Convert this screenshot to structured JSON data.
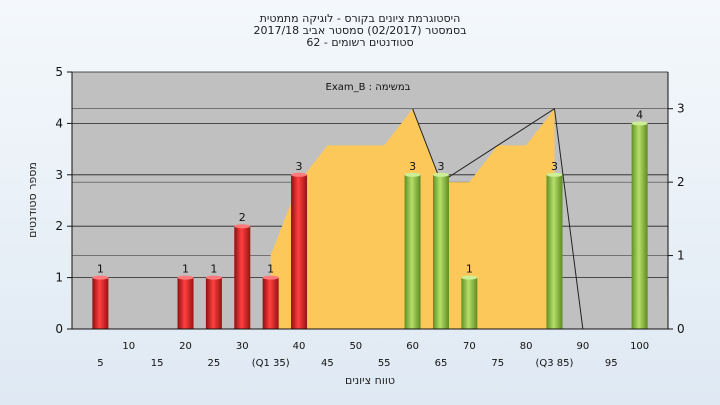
{
  "chart_data": {
    "type": "bar",
    "title_lines": [
      "היסטוגרמת ציונים בקורס - לוגיקה מתמטית",
      "בסמסטר  (02/2017)  סמסטר אביב 2017/18",
      "סטודנטים רשומים - 62"
    ],
    "annotation": "Exam_B : במשימה",
    "xlabel": "טווח ציונים",
    "ylabel": "מספר סטודנטים",
    "left_ylim": [
      0,
      5
    ],
    "left_yticks": [
      0,
      1,
      2,
      3,
      4,
      5
    ],
    "right_ylim": [
      0,
      3.5
    ],
    "right_yticks": [
      0,
      1,
      2,
      3
    ],
    "xlim": [
      0,
      105
    ],
    "x_tick_labels_upper": [
      {
        "x": 10,
        "label": "10"
      },
      {
        "x": 20,
        "label": "20"
      },
      {
        "x": 30,
        "label": "30"
      },
      {
        "x": 40,
        "label": "40"
      },
      {
        "x": 50,
        "label": "50"
      },
      {
        "x": 60,
        "label": "60"
      },
      {
        "x": 70,
        "label": "70"
      },
      {
        "x": 80,
        "label": "80"
      },
      {
        "x": 90,
        "label": "90"
      },
      {
        "x": 100,
        "label": "100"
      }
    ],
    "x_tick_labels_lower": [
      {
        "x": 5,
        "label": "5"
      },
      {
        "x": 15,
        "label": "15"
      },
      {
        "x": 25,
        "label": "25"
      },
      {
        "x": 35,
        "label": "(Q1 35)"
      },
      {
        "x": 45,
        "label": "45"
      },
      {
        "x": 55,
        "label": "55"
      },
      {
        "x": 65,
        "label": "65"
      },
      {
        "x": 75,
        "label": "75"
      },
      {
        "x": 85,
        "label": "(Q3 85)"
      },
      {
        "x": 95,
        "label": "95"
      }
    ],
    "bars": [
      {
        "x": 5,
        "value": 1,
        "color": "red"
      },
      {
        "x": 20,
        "value": 1,
        "color": "red"
      },
      {
        "x": 25,
        "value": 1,
        "color": "red"
      },
      {
        "x": 30,
        "value": 2,
        "color": "red"
      },
      {
        "x": 35,
        "value": 1,
        "color": "red"
      },
      {
        "x": 40,
        "value": 3,
        "color": "red"
      },
      {
        "x": 60,
        "value": 3,
        "color": "green"
      },
      {
        "x": 65,
        "value": 3,
        "color": "green"
      },
      {
        "x": 70,
        "value": 1,
        "color": "green"
      },
      {
        "x": 85,
        "value": 3,
        "color": "green"
      },
      {
        "x": 100,
        "value": 4,
        "color": "green"
      }
    ],
    "area": [
      {
        "x": 35,
        "y": 1
      },
      {
        "x": 40,
        "y": 2
      },
      {
        "x": 45,
        "y": 2.5
      },
      {
        "x": 50,
        "y": 2.5
      },
      {
        "x": 55,
        "y": 2.5
      },
      {
        "x": 60,
        "y": 3
      },
      {
        "x": 65,
        "y": 2
      },
      {
        "x": 70,
        "y": 2
      },
      {
        "x": 75,
        "y": 2.5
      },
      {
        "x": 80,
        "y": 2.5
      },
      {
        "x": 85,
        "y": 3
      }
    ],
    "area_line": [
      {
        "x": 60,
        "y": 3
      },
      {
        "x": 65,
        "y": 2
      },
      {
        "x": 85,
        "y": 3
      },
      {
        "x": 90,
        "y": 0
      }
    ],
    "colors": {
      "background": "#c0c0c0",
      "area_fill": "#fdc85a",
      "bar_red": "#dd2a2a",
      "bar_green": "#8cc34a",
      "grid": "#222222"
    }
  }
}
